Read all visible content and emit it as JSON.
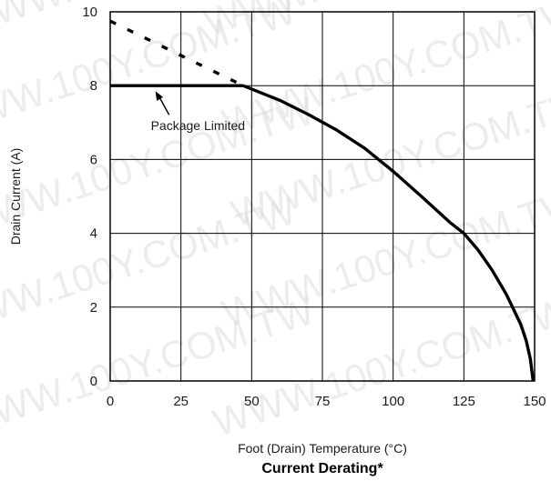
{
  "chart_data": {
    "type": "line",
    "title": "Current Derating*",
    "xlabel": "Foot (Drain) Temperature (°C)",
    "ylabel": "Drain Current (A)",
    "xlim": [
      0,
      150
    ],
    "ylim": [
      0,
      10
    ],
    "x_ticks": [
      0,
      25,
      50,
      75,
      100,
      125,
      150
    ],
    "y_ticks": [
      0,
      2,
      4,
      6,
      8,
      10
    ],
    "x_tick_labels": [
      "0",
      "25",
      "50",
      "75",
      "100",
      "125",
      "150"
    ],
    "y_tick_labels": [
      "0",
      "2",
      "4",
      "6",
      "8",
      "10"
    ],
    "grid": true,
    "series": [
      {
        "style": "solid",
        "points": [
          [
            0,
            8.0
          ],
          [
            47,
            8.0
          ]
        ]
      },
      {
        "style": "solid",
        "points": [
          [
            47,
            8.0
          ],
          [
            60,
            7.6
          ],
          [
            70,
            7.22
          ],
          [
            80,
            6.8
          ],
          [
            90,
            6.3
          ],
          [
            100,
            5.68
          ],
          [
            110,
            5.0
          ],
          [
            120,
            4.3
          ],
          [
            125,
            4.0
          ],
          [
            130,
            3.55
          ],
          [
            135,
            3.0
          ],
          [
            140,
            2.35
          ],
          [
            145,
            1.55
          ],
          [
            147,
            1.1
          ],
          [
            148.5,
            0.6
          ],
          [
            149.5,
            0.0
          ]
        ]
      },
      {
        "style": "dashed",
        "points": [
          [
            0,
            9.75
          ],
          [
            47,
            8.0
          ]
        ]
      }
    ],
    "annotations": [
      {
        "text": "Package Limited",
        "arrow_to": [
          15,
          8.0
        ]
      }
    ]
  },
  "watermark": {
    "text": "WWW.100Y.COM.TW",
    "color": "#d7d7d7"
  }
}
